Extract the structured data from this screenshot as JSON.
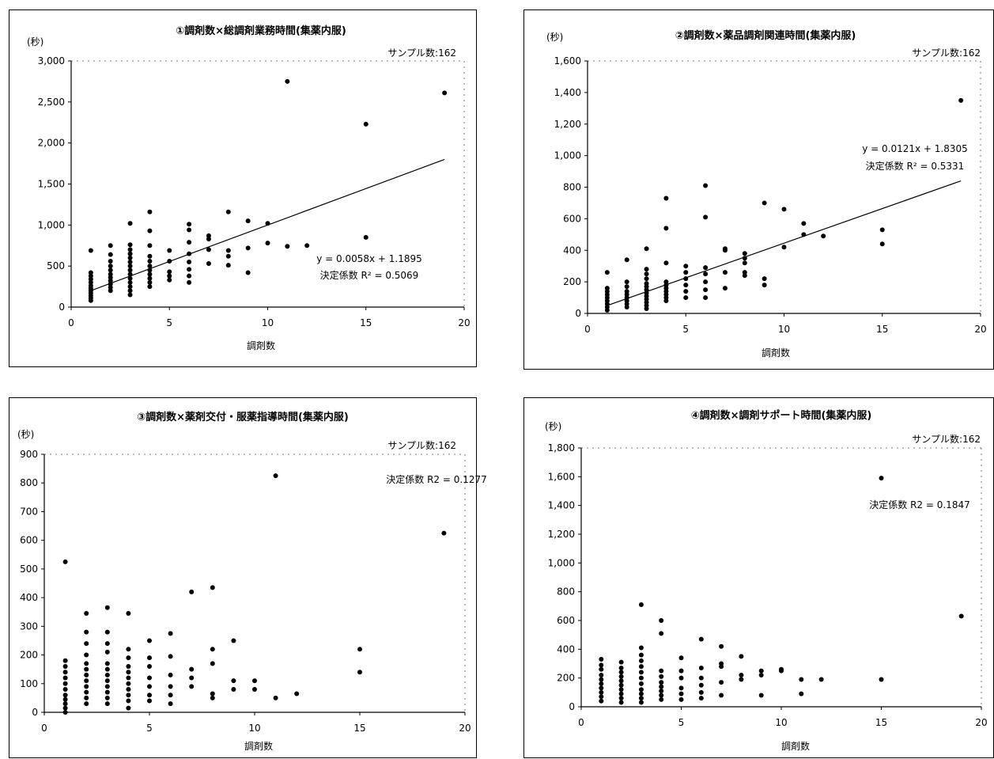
{
  "charts": [
    {
      "type": "scatter",
      "title": "①調剤数×総調剤業務時間(集薬内服)",
      "ylabel": "(秒)",
      "xlabel": "調剤数",
      "sample": "サンプル数:162",
      "eq": "y = 0.0058x + 1.1895",
      "r2_text": "決定係数 R² = 0.5069",
      "xlim": [
        0,
        20
      ],
      "ylim": [
        0,
        3000
      ],
      "xticks": [
        "0",
        "5",
        "10",
        "15",
        "20"
      ],
      "yticks": [
        "0",
        "500",
        "1,000",
        "1,500",
        "2,000",
        "2,500",
        "3,000"
      ],
      "trend": [
        [
          1,
          200
        ],
        [
          19,
          1800
        ]
      ],
      "points": [
        [
          1,
          80
        ],
        [
          1,
          110
        ],
        [
          1,
          140
        ],
        [
          1,
          170
        ],
        [
          1,
          200
        ],
        [
          1,
          230
        ],
        [
          1,
          260
        ],
        [
          1,
          300
        ],
        [
          1,
          340
        ],
        [
          1,
          380
        ],
        [
          1,
          420
        ],
        [
          1,
          690
        ],
        [
          2,
          200
        ],
        [
          2,
          240
        ],
        [
          2,
          280
        ],
        [
          2,
          320
        ],
        [
          2,
          360
        ],
        [
          2,
          400
        ],
        [
          2,
          450
        ],
        [
          2,
          500
        ],
        [
          2,
          560
        ],
        [
          2,
          640
        ],
        [
          2,
          750
        ],
        [
          3,
          150
        ],
        [
          3,
          200
        ],
        [
          3,
          250
        ],
        [
          3,
          300
        ],
        [
          3,
          350
        ],
        [
          3,
          400
        ],
        [
          3,
          450
        ],
        [
          3,
          500
        ],
        [
          3,
          550
        ],
        [
          3,
          600
        ],
        [
          3,
          650
        ],
        [
          3,
          700
        ],
        [
          3,
          760
        ],
        [
          3,
          1020
        ],
        [
          4,
          250
        ],
        [
          4,
          300
        ],
        [
          4,
          350
        ],
        [
          4,
          400
        ],
        [
          4,
          450
        ],
        [
          4,
          500
        ],
        [
          4,
          560
        ],
        [
          4,
          620
        ],
        [
          4,
          750
        ],
        [
          4,
          930
        ],
        [
          4,
          1160
        ],
        [
          5,
          330
        ],
        [
          5,
          380
        ],
        [
          5,
          430
        ],
        [
          5,
          560
        ],
        [
          5,
          690
        ],
        [
          6,
          300
        ],
        [
          6,
          380
        ],
        [
          6,
          460
        ],
        [
          6,
          550
        ],
        [
          6,
          650
        ],
        [
          6,
          790
        ],
        [
          6,
          940
        ],
        [
          6,
          1010
        ],
        [
          7,
          530
        ],
        [
          7,
          700
        ],
        [
          7,
          830
        ],
        [
          7,
          870
        ],
        [
          8,
          510
        ],
        [
          8,
          620
        ],
        [
          8,
          690
        ],
        [
          8,
          1160
        ],
        [
          9,
          420
        ],
        [
          9,
          720
        ],
        [
          9,
          1050
        ],
        [
          10,
          780
        ],
        [
          10,
          1020
        ],
        [
          11,
          2750
        ],
        [
          11,
          740
        ],
        [
          12,
          750
        ],
        [
          15,
          2230
        ],
        [
          15,
          850
        ],
        [
          19,
          2610
        ]
      ]
    },
    {
      "type": "scatter",
      "title": "②調剤数×薬品調剤関連時間(集薬内服)",
      "ylabel": "(秒)",
      "xlabel": "調剤数",
      "sample": "サンプル数:162",
      "eq": "y = 0.0121x + 1.8305",
      "r2_text": "決定係数 R² = 0.5331",
      "xlim": [
        0,
        20
      ],
      "ylim": [
        0,
        1600
      ],
      "xticks": [
        "0",
        "5",
        "10",
        "15",
        "20"
      ],
      "yticks": [
        "0",
        "200",
        "400",
        "600",
        "800",
        "1,000",
        "1,200",
        "1,400",
        "1,600"
      ],
      "trend": [
        [
          1,
          50
        ],
        [
          19,
          840
        ]
      ],
      "points": [
        [
          1,
          20
        ],
        [
          1,
          40
        ],
        [
          1,
          60
        ],
        [
          1,
          80
        ],
        [
          1,
          100
        ],
        [
          1,
          120
        ],
        [
          1,
          140
        ],
        [
          1,
          160
        ],
        [
          1,
          260
        ],
        [
          2,
          40
        ],
        [
          2,
          60
        ],
        [
          2,
          80
        ],
        [
          2,
          100
        ],
        [
          2,
          120
        ],
        [
          2,
          140
        ],
        [
          2,
          170
        ],
        [
          2,
          200
        ],
        [
          2,
          340
        ],
        [
          3,
          30
        ],
        [
          3,
          50
        ],
        [
          3,
          70
        ],
        [
          3,
          90
        ],
        [
          3,
          110
        ],
        [
          3,
          130
        ],
        [
          3,
          150
        ],
        [
          3,
          170
        ],
        [
          3,
          190
        ],
        [
          3,
          220
        ],
        [
          3,
          250
        ],
        [
          3,
          280
        ],
        [
          3,
          410
        ],
        [
          4,
          80
        ],
        [
          4,
          100
        ],
        [
          4,
          120
        ],
        [
          4,
          140
        ],
        [
          4,
          160
        ],
        [
          4,
          180
        ],
        [
          4,
          200
        ],
        [
          4,
          320
        ],
        [
          4,
          540
        ],
        [
          4,
          730
        ],
        [
          5,
          100
        ],
        [
          5,
          140
        ],
        [
          5,
          180
        ],
        [
          5,
          220
        ],
        [
          5,
          260
        ],
        [
          5,
          300
        ],
        [
          6,
          100
        ],
        [
          6,
          150
        ],
        [
          6,
          200
        ],
        [
          6,
          250
        ],
        [
          6,
          290
        ],
        [
          6,
          610
        ],
        [
          6,
          810
        ],
        [
          7,
          160
        ],
        [
          7,
          260
        ],
        [
          7,
          400
        ],
        [
          7,
          410
        ],
        [
          8,
          240
        ],
        [
          8,
          260
        ],
        [
          8,
          320
        ],
        [
          8,
          350
        ],
        [
          8,
          380
        ],
        [
          9,
          180
        ],
        [
          9,
          220
        ],
        [
          9,
          700
        ],
        [
          10,
          420
        ],
        [
          10,
          660
        ],
        [
          11,
          500
        ],
        [
          11,
          570
        ],
        [
          12,
          490
        ],
        [
          15,
          440
        ],
        [
          15,
          530
        ],
        [
          19,
          1350
        ]
      ]
    },
    {
      "type": "scatter",
      "title": "③調剤数×薬剤交付・服薬指導時間(集薬内服)",
      "ylabel": "(秒)",
      "xlabel": "調剤数",
      "sample": "サンプル数:162",
      "eq": "",
      "r2_text": "決定係数 R2 = 0.1277",
      "xlim": [
        0,
        20
      ],
      "ylim": [
        0,
        900
      ],
      "xticks": [
        "0",
        "5",
        "10",
        "15",
        "20"
      ],
      "yticks": [
        "0",
        "100",
        "200",
        "300",
        "400",
        "500",
        "600",
        "700",
        "800",
        "900"
      ],
      "trend": [],
      "points": [
        [
          1,
          0
        ],
        [
          1,
          15
        ],
        [
          1,
          30
        ],
        [
          1,
          45
        ],
        [
          1,
          60
        ],
        [
          1,
          80
        ],
        [
          1,
          100
        ],
        [
          1,
          120
        ],
        [
          1,
          140
        ],
        [
          1,
          160
        ],
        [
          1,
          180
        ],
        [
          1,
          525
        ],
        [
          2,
          30
        ],
        [
          2,
          50
        ],
        [
          2,
          70
        ],
        [
          2,
          90
        ],
        [
          2,
          110
        ],
        [
          2,
          130
        ],
        [
          2,
          150
        ],
        [
          2,
          170
        ],
        [
          2,
          200
        ],
        [
          2,
          240
        ],
        [
          2,
          280
        ],
        [
          2,
          345
        ],
        [
          3,
          30
        ],
        [
          3,
          50
        ],
        [
          3,
          70
        ],
        [
          3,
          90
        ],
        [
          3,
          110
        ],
        [
          3,
          130
        ],
        [
          3,
          150
        ],
        [
          3,
          170
        ],
        [
          3,
          210
        ],
        [
          3,
          240
        ],
        [
          3,
          280
        ],
        [
          3,
          365
        ],
        [
          4,
          15
        ],
        [
          4,
          40
        ],
        [
          4,
          60
        ],
        [
          4,
          80
        ],
        [
          4,
          100
        ],
        [
          4,
          120
        ],
        [
          4,
          140
        ],
        [
          4,
          160
        ],
        [
          4,
          190
        ],
        [
          4,
          220
        ],
        [
          4,
          345
        ],
        [
          5,
          40
        ],
        [
          5,
          60
        ],
        [
          5,
          90
        ],
        [
          5,
          120
        ],
        [
          5,
          160
        ],
        [
          5,
          190
        ],
        [
          5,
          250
        ],
        [
          6,
          30
        ],
        [
          6,
          60
        ],
        [
          6,
          90
        ],
        [
          6,
          130
        ],
        [
          6,
          195
        ],
        [
          6,
          275
        ],
        [
          7,
          90
        ],
        [
          7,
          120
        ],
        [
          7,
          150
        ],
        [
          7,
          420
        ],
        [
          8,
          50
        ],
        [
          8,
          65
        ],
        [
          8,
          170
        ],
        [
          8,
          220
        ],
        [
          8,
          435
        ],
        [
          9,
          80
        ],
        [
          9,
          110
        ],
        [
          9,
          250
        ],
        [
          10,
          80
        ],
        [
          10,
          110
        ],
        [
          11,
          50
        ],
        [
          11,
          825
        ],
        [
          12,
          65
        ],
        [
          15,
          140
        ],
        [
          15,
          220
        ],
        [
          19,
          625
        ]
      ]
    },
    {
      "type": "scatter",
      "title": "④調剤数×調剤サポート時間(集薬内服)",
      "ylabel": "(秒)",
      "xlabel": "調剤数",
      "sample": "サンプル数:162",
      "eq": "",
      "r2_text": "決定係数 R2 = 0.1847",
      "xlim": [
        0,
        20
      ],
      "ylim": [
        0,
        1800
      ],
      "xticks": [
        "0",
        "5",
        "10",
        "15",
        "20"
      ],
      "yticks": [
        "0",
        "200",
        "400",
        "600",
        "800",
        "1,000",
        "1,200",
        "1,400",
        "1,600",
        "1,800"
      ],
      "trend": [],
      "points": [
        [
          1,
          40
        ],
        [
          1,
          70
        ],
        [
          1,
          100
        ],
        [
          1,
          130
        ],
        [
          1,
          160
        ],
        [
          1,
          190
        ],
        [
          1,
          220
        ],
        [
          1,
          260
        ],
        [
          1,
          290
        ],
        [
          1,
          330
        ],
        [
          2,
          30
        ],
        [
          2,
          60
        ],
        [
          2,
          90
        ],
        [
          2,
          120
        ],
        [
          2,
          150
        ],
        [
          2,
          180
        ],
        [
          2,
          210
        ],
        [
          2,
          240
        ],
        [
          2,
          270
        ],
        [
          2,
          310
        ],
        [
          3,
          30
        ],
        [
          3,
          60
        ],
        [
          3,
          90
        ],
        [
          3,
          120
        ],
        [
          3,
          160
        ],
        [
          3,
          200
        ],
        [
          3,
          240
        ],
        [
          3,
          280
        ],
        [
          3,
          320
        ],
        [
          3,
          360
        ],
        [
          3,
          410
        ],
        [
          3,
          710
        ],
        [
          4,
          50
        ],
        [
          4,
          80
        ],
        [
          4,
          110
        ],
        [
          4,
          140
        ],
        [
          4,
          170
        ],
        [
          4,
          210
        ],
        [
          4,
          250
        ],
        [
          4,
          510
        ],
        [
          4,
          600
        ],
        [
          5,
          50
        ],
        [
          5,
          90
        ],
        [
          5,
          130
        ],
        [
          5,
          200
        ],
        [
          5,
          250
        ],
        [
          5,
          340
        ],
        [
          6,
          60
        ],
        [
          6,
          100
        ],
        [
          6,
          150
        ],
        [
          6,
          200
        ],
        [
          6,
          270
        ],
        [
          6,
          470
        ],
        [
          7,
          80
        ],
        [
          7,
          170
        ],
        [
          7,
          280
        ],
        [
          7,
          300
        ],
        [
          7,
          420
        ],
        [
          8,
          190
        ],
        [
          8,
          220
        ],
        [
          8,
          350
        ],
        [
          9,
          80
        ],
        [
          9,
          220
        ],
        [
          9,
          250
        ],
        [
          10,
          250
        ],
        [
          10,
          260
        ],
        [
          11,
          90
        ],
        [
          11,
          190
        ],
        [
          12,
          190
        ],
        [
          15,
          190
        ],
        [
          15,
          1590
        ],
        [
          19,
          630
        ]
      ]
    }
  ],
  "chart_data": [
    {
      "type": "scatter",
      "title": "①調剤数×総調剤業務時間(集薬内服)",
      "xlabel": "調剤数",
      "ylabel": "(秒)",
      "xlim": [
        0,
        20
      ],
      "ylim": [
        0,
        3000
      ],
      "annotations": [
        "サンプル数:162",
        "y = 0.0058x + 1.1895",
        "決定係数 R² = 0.5069"
      ]
    },
    {
      "type": "scatter",
      "title": "②調剤数×薬品調剤関連時間(集薬内服)",
      "xlabel": "調剤数",
      "ylabel": "(秒)",
      "xlim": [
        0,
        20
      ],
      "ylim": [
        0,
        1600
      ],
      "annotations": [
        "サンプル数:162",
        "y = 0.0121x + 1.8305",
        "決定係数 R² = 0.5331"
      ]
    },
    {
      "type": "scatter",
      "title": "③調剤数×薬剤交付・服薬指導時間(集薬内服)",
      "xlabel": "調剤数",
      "ylabel": "(秒)",
      "xlim": [
        0,
        20
      ],
      "ylim": [
        0,
        900
      ],
      "annotations": [
        "サンプル数:162",
        "決定係数 R2 = 0.1277"
      ]
    },
    {
      "type": "scatter",
      "title": "④調剤数×調剤サポート時間(集薬内服)",
      "xlabel": "調剤数",
      "ylabel": "(秒)",
      "xlim": [
        0,
        20
      ],
      "ylim": [
        0,
        1800
      ],
      "annotations": [
        "サンプル数:162",
        "決定係数 R2 = 0.1847"
      ]
    }
  ]
}
